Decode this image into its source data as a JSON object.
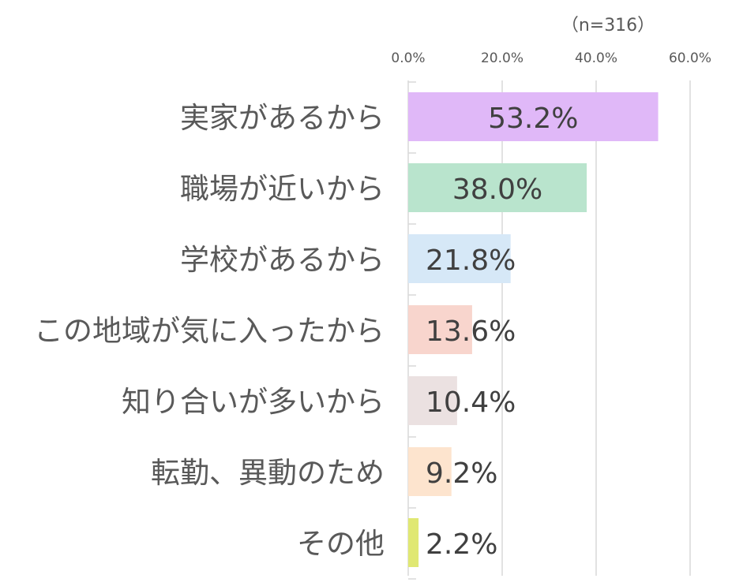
{
  "chart_data": {
    "type": "bar",
    "orientation": "horizontal",
    "note": "（n=316）",
    "categories": [
      "実家があるから",
      "職場が近いから",
      "学校があるから",
      "この地域が気に入ったから",
      "知り合いが多いから",
      "転勤、異動のため",
      "その他"
    ],
    "values": [
      53.2,
      38.0,
      21.8,
      13.6,
      10.4,
      9.2,
      2.2
    ],
    "value_labels": [
      "53.2%",
      "38.0%",
      "21.8%",
      "13.6%",
      "10.4%",
      "9.2%",
      "2.2%"
    ],
    "bar_colors": [
      "#E0B8F8",
      "#B9E4CD",
      "#D6E8F7",
      "#F8D5CD",
      "#EBE1E1",
      "#FDE4CE",
      "#E0E873"
    ],
    "xlim": [
      0,
      60
    ],
    "x_ticks": [
      0,
      20,
      40,
      60
    ],
    "x_tick_labels": [
      "0.0%",
      "20.0%",
      "40.0%",
      "60.0%"
    ],
    "axis_position": "top",
    "grid": true,
    "legend": "none"
  }
}
